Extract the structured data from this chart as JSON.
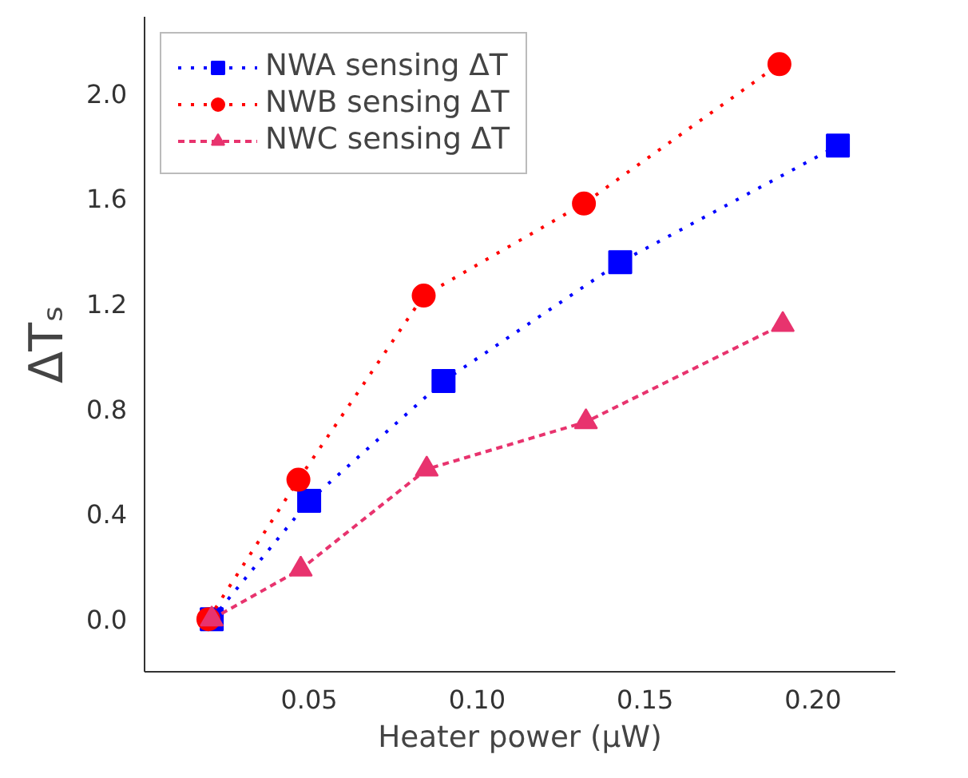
{
  "chart_data": {
    "type": "line",
    "xlabel": "Heater power (μW)",
    "ylabel": "ΔTₛ",
    "xlim": [
      0.001,
      0.2245
    ],
    "ylim": [
      -0.2,
      2.29
    ],
    "xticks": [
      {
        "value": 0.05,
        "label": "0.05"
      },
      {
        "value": 0.1,
        "label": "0.10"
      },
      {
        "value": 0.15,
        "label": "0.15"
      },
      {
        "value": 0.2,
        "label": "0.20"
      }
    ],
    "yticks": [
      {
        "value": 0,
        "label": "0.0"
      },
      {
        "value": 0.4,
        "label": "0.4"
      },
      {
        "value": 0.8,
        "label": "0.8"
      },
      {
        "value": 1.2,
        "label": "1.2"
      },
      {
        "value": 1.6,
        "label": "1.6"
      },
      {
        "value": 2.0,
        "label": "2.0"
      }
    ],
    "grid": false,
    "legend": "top left",
    "series": [
      {
        "name": "NWA sensing ΔT",
        "color": "#0000ff",
        "marker": "square",
        "line_style": "dotted",
        "x": [
          0.021,
          0.05,
          0.09,
          0.1426,
          0.2074
        ],
        "values": [
          0.0,
          0.45,
          0.905,
          1.357,
          1.8
        ]
      },
      {
        "name": "NWB sensing ΔT",
        "color": "#ff0000",
        "marker": "circle",
        "line_style": "dotted",
        "x": [
          0.02,
          0.0468,
          0.0841,
          0.1318,
          0.19
        ],
        "values": [
          0.0,
          0.53,
          1.23,
          1.58,
          2.11
        ]
      },
      {
        "name": "NWC sensing ΔT",
        "color": "#e8336e",
        "marker": "triangle",
        "line_style": "dashed",
        "x": [
          0.021,
          0.0475,
          0.085,
          0.1324,
          0.191
        ],
        "values": [
          0.0,
          0.19,
          0.57,
          0.75,
          1.12
        ]
      }
    ]
  }
}
